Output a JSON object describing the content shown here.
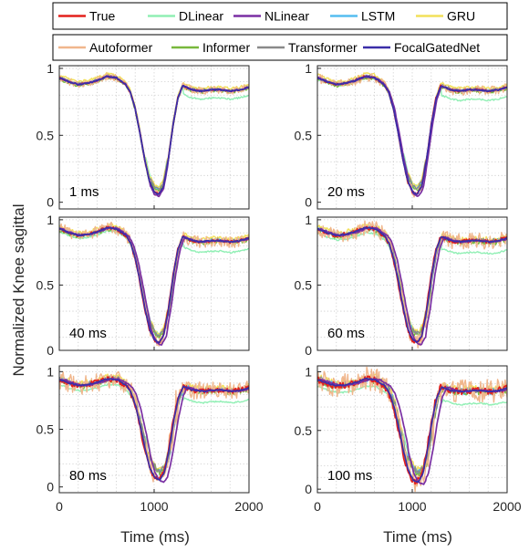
{
  "chart_data": {
    "type": "line",
    "xlabel": "Time (ms)",
    "ylabel": "Normalized Knee sagittal",
    "xlim": [
      0,
      2000
    ],
    "ylim": [
      0,
      1
    ],
    "x_ticks": [
      "0",
      "1000",
      "2000"
    ],
    "y_ticks": [
      "0",
      "0.5",
      "1"
    ],
    "grid": "dotted",
    "legend": {
      "placement": "top",
      "rows": [
        [
          {
            "name": "True",
            "color": "#e3201c"
          },
          {
            "name": "DLinear",
            "color": "#90efb4"
          },
          {
            "name": "NLinear",
            "color": "#7a2fa3"
          },
          {
            "name": "LSTM",
            "color": "#55bdf0"
          },
          {
            "name": "GRU",
            "color": "#f2e05a"
          }
        ],
        [
          {
            "name": "Autoformer",
            "color": "#f0b68c"
          },
          {
            "name": "Informer",
            "color": "#78b83c"
          },
          {
            "name": "Transformer",
            "color": "#8a8a8a"
          },
          {
            "name": "FocalGatedNet",
            "color": "#3a2ea8"
          }
        ]
      ]
    },
    "true_curve": {
      "x": [
        0,
        100,
        200,
        300,
        400,
        500,
        600,
        700,
        750,
        800,
        850,
        900,
        950,
        1000,
        1050,
        1100,
        1150,
        1200,
        1250,
        1300,
        1400,
        1500,
        1600,
        1700,
        1800,
        1900,
        2000
      ],
      "y": [
        0.93,
        0.9,
        0.88,
        0.89,
        0.91,
        0.94,
        0.93,
        0.88,
        0.82,
        0.7,
        0.52,
        0.32,
        0.16,
        0.08,
        0.06,
        0.12,
        0.32,
        0.58,
        0.78,
        0.87,
        0.84,
        0.83,
        0.84,
        0.84,
        0.83,
        0.84,
        0.86
      ]
    },
    "panels": [
      {
        "annotation": "1 ms",
        "ylim": [
          -0.05,
          1.02
        ]
      },
      {
        "annotation": "20 ms",
        "ylim": [
          -0.05,
          1.02
        ]
      },
      {
        "annotation": "40 ms",
        "ylim": [
          0,
          1.02
        ]
      },
      {
        "annotation": "60 ms",
        "ylim": [
          0,
          1.02
        ]
      },
      {
        "annotation": "80 ms",
        "ylim": [
          -0.05,
          1.05
        ]
      },
      {
        "annotation": "100 ms",
        "ylim": [
          -0.03,
          1.05
        ]
      }
    ]
  }
}
